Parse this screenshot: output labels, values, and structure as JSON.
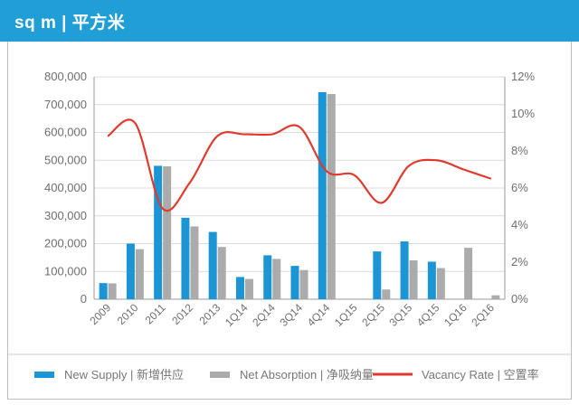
{
  "header": {
    "title": "sq m | 平方米",
    "background": "#1f9fd5"
  },
  "chart_data": {
    "type": "bar",
    "categories": [
      "2009",
      "2010",
      "2011",
      "2012",
      "2013",
      "1Q14",
      "2Q14",
      "3Q14",
      "4Q14",
      "1Q15",
      "2Q15",
      "3Q15",
      "4Q15",
      "1Q16",
      "2Q16"
    ],
    "series": [
      {
        "name": "New Supply | 新增供应",
        "kind": "bar",
        "axis": "left",
        "color": "#1b95d3",
        "values": [
          58000,
          200000,
          480000,
          293000,
          242000,
          80000,
          158000,
          120000,
          745000,
          0,
          172000,
          208000,
          135000,
          0,
          0
        ]
      },
      {
        "name": "Net Absorption | 净吸纳量",
        "kind": "bar",
        "axis": "left",
        "color": "#ababab",
        "values": [
          57000,
          180000,
          478000,
          262000,
          188000,
          73000,
          145000,
          105000,
          738000,
          0,
          35000,
          140000,
          112000,
          185000,
          14000
        ]
      },
      {
        "name": "Vacancy Rate | 空置率",
        "kind": "line",
        "axis": "right",
        "color": "#e03a2e",
        "values": [
          8.8,
          9.5,
          4.9,
          6.3,
          8.8,
          8.9,
          8.9,
          9.3,
          6.9,
          6.7,
          5.2,
          7.2,
          7.5,
          7.0,
          6.5
        ]
      }
    ],
    "y_left": {
      "min": 0,
      "max": 800000,
      "ticks": [
        "0",
        "100,000",
        "200,000",
        "300,000",
        "400,000",
        "500,000",
        "600,000",
        "700,000",
        "800,000"
      ]
    },
    "y_right": {
      "min": 0,
      "max": 12,
      "ticks": [
        "0%",
        "2%",
        "4%",
        "6%",
        "8%",
        "10%",
        "12%"
      ]
    },
    "grid": true,
    "legend_position": "bottom"
  }
}
